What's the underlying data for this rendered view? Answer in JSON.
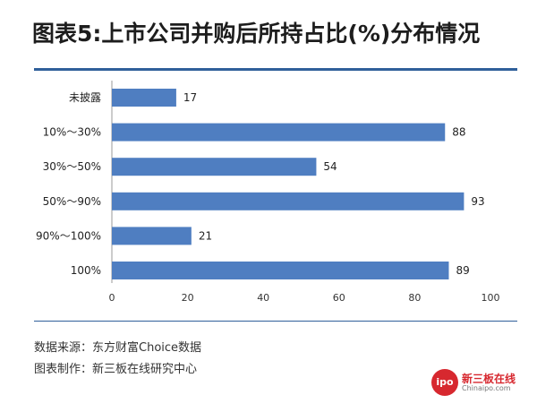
{
  "title": "图表5:上市公司并购后所持占比(%)分布情况",
  "footnotes": {
    "source": "数据来源：东方财富Choice数据",
    "maker": "图表制作：新三板在线研究中心"
  },
  "logo": {
    "badge": "ipo",
    "name": "新三板在线",
    "domain": "Chinaipo.com"
  },
  "colors": {
    "bar": "#4f7ec1",
    "rule": "#2f5f9a",
    "logo": "#d7282f"
  },
  "chart_data": {
    "type": "bar",
    "orientation": "horizontal",
    "categories": [
      "未披露",
      "10%～30%",
      "30%～50%",
      "50%～90%",
      "90%～100%",
      "100%"
    ],
    "values": [
      17,
      88,
      54,
      93,
      21,
      89
    ],
    "xlim": [
      0,
      100
    ],
    "xticks": [
      0,
      20,
      40,
      60,
      80,
      100
    ],
    "grid": false,
    "data_labels": true
  }
}
